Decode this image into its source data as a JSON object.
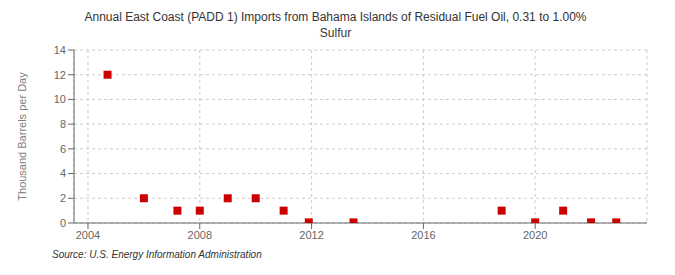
{
  "chart_data": {
    "type": "scatter",
    "title": "Annual East Coast (PADD 1) Imports from Bahama Islands of Residual Fuel Oil, 0.31 to 1.00%\nSulfur",
    "ylabel": "Thousand Barrels per Day",
    "annotations": [
      "Source: U.S. Energy Information Administration"
    ],
    "x": [
      2004.7,
      2006.0,
      2007.2,
      2008.0,
      2009.0,
      2010.0,
      2011.0,
      2011.9,
      2013.5,
      2018.8,
      2020.0,
      2021.0,
      2022.0,
      2022.9
    ],
    "values": [
      12.0,
      2.0,
      1.0,
      1.0,
      2.0,
      2.0,
      1.0,
      0.05,
      0.05,
      1.0,
      0.05,
      1.0,
      0.05,
      0.05
    ],
    "color": "#cc0000",
    "marker": "square",
    "xlim": [
      2003.5,
      2024.0
    ],
    "ylim": [
      0,
      14
    ],
    "xticks": [
      2004,
      2008,
      2012,
      2016,
      2020
    ],
    "yticks": [
      0,
      2,
      4,
      6,
      8,
      10,
      12,
      14
    ],
    "grid": true
  }
}
